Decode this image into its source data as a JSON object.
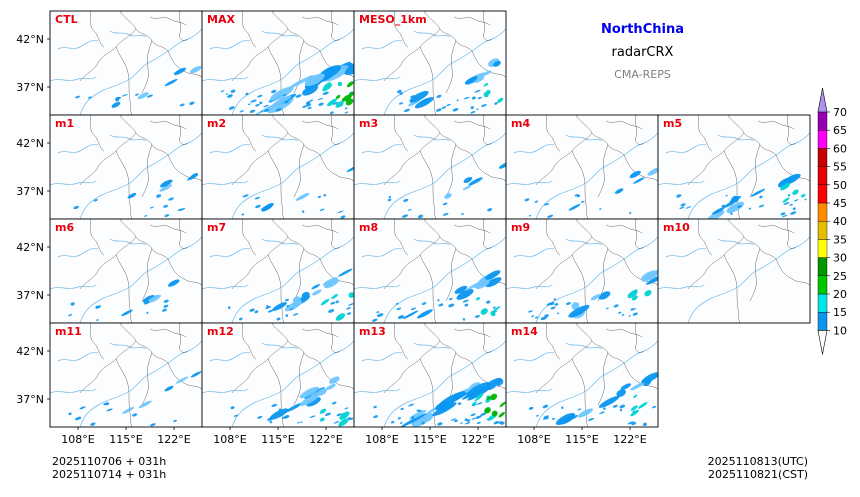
{
  "header": {
    "region": "NorthChina",
    "variable": "radarCRX",
    "system": "CMA-REPS"
  },
  "panels": [
    [
      "CTL",
      "MAX",
      "MESO_1km"
    ],
    [
      "m1",
      "m2",
      "m3",
      "m4",
      "m5"
    ],
    [
      "m6",
      "m7",
      "m8",
      "m9",
      "m10"
    ],
    [
      "m11",
      "m12",
      "m13",
      "m14"
    ]
  ],
  "axes": {
    "lat_ticks": [
      "42°N",
      "37°N"
    ],
    "lon_ticks": [
      "108°E",
      "115°E",
      "122°E"
    ]
  },
  "colorbar": {
    "levels": [
      10,
      15,
      20,
      25,
      30,
      35,
      40,
      45,
      50,
      55,
      60,
      65,
      70
    ],
    "colors": [
      "#0a96f0",
      "#00e6e6",
      "#00c800",
      "#009600",
      "#ffff00",
      "#e6be00",
      "#ff8c00",
      "#ff0000",
      "#e60000",
      "#c80000",
      "#ff00f0",
      "#9600b4",
      "#ad90f0"
    ],
    "extend_high_color": "#ad90f0",
    "extend_low_color": "#ffffff"
  },
  "footer": {
    "init_line1": "2025110706  +  031h",
    "init_line2": "2025110714  +  031h",
    "valid_utc": "2025110813(UTC)",
    "valid_cst": "2025110821(CST)"
  },
  "colors": {
    "label": "#e8000b",
    "region_title": "#0000ee",
    "system_text": "#808080",
    "coast": "#6fb9e8",
    "border": "#555555",
    "echo_main": "#0a96f0",
    "echo_light": "#6fc6ff",
    "echo_cyan": "#00d2d2",
    "echo_green": "#00b400"
  },
  "panel_intensity": {
    "CTL": 1,
    "MAX": 3,
    "MESO_1km": 2,
    "m1": 1,
    "m2": 1,
    "m3": 1,
    "m4": 1,
    "m5": 2,
    "m6": 1,
    "m7": 2,
    "m8": 2,
    "m9": 2,
    "m10": 0,
    "m11": 1,
    "m12": 2,
    "m13": 3,
    "m14": 2
  }
}
